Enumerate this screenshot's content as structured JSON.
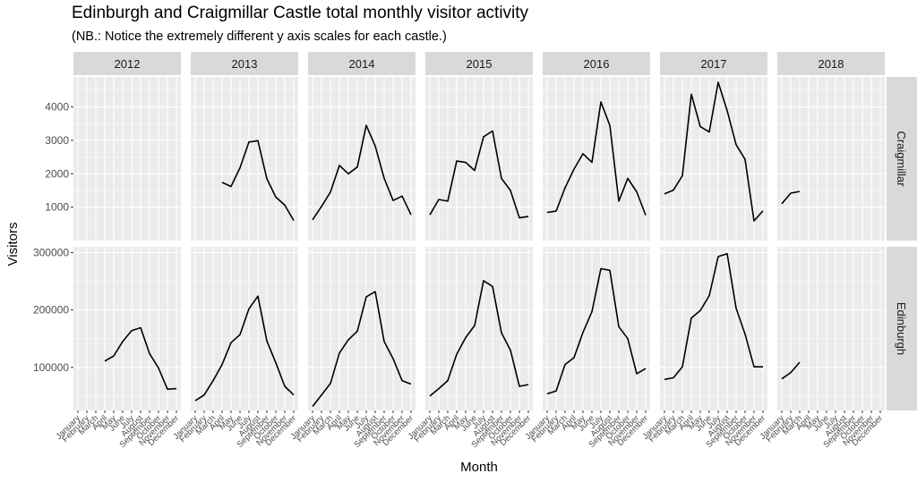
{
  "chart_data": {
    "type": "line",
    "title": "Edinburgh and Craigmillar Castle total monthly visitor activity",
    "subtitle": "(NB.: Notice the extremely different y axis scales for each castle.)",
    "xlabel": "Month",
    "ylabel": "Visitors",
    "months": [
      "January",
      "February",
      "March",
      "April",
      "May",
      "June",
      "July",
      "August",
      "September",
      "October",
      "November",
      "December"
    ],
    "years": [
      "2012",
      "2013",
      "2014",
      "2015",
      "2016",
      "2017",
      "2018"
    ],
    "grid": true,
    "facets": [
      {
        "castle": "Craigmillar",
        "ylim": [
          0,
          4900
        ],
        "yticks": [
          1000,
          2000,
          3000,
          4000
        ],
        "yticklabels": [
          "1000",
          "2000",
          "3000",
          "4000"
        ],
        "series": [
          {
            "year": "2012",
            "values": [
              null,
              null,
              null,
              null,
              null,
              null,
              null,
              null,
              null,
              null,
              null,
              null
            ]
          },
          {
            "year": "2013",
            "values": [
              null,
              null,
              null,
              1740,
              1620,
              2180,
              2950,
              2990,
              1850,
              1300,
              1060,
              600
            ]
          },
          {
            "year": "2014",
            "values": [
              620,
              1020,
              1450,
              2250,
              2000,
              2200,
              3450,
              2830,
              1860,
              1200,
              1330,
              770
            ]
          },
          {
            "year": "2015",
            "values": [
              770,
              1230,
              1180,
              2380,
              2340,
              2100,
              3110,
              3280,
              1860,
              1500,
              680,
              720
            ]
          },
          {
            "year": "2016",
            "values": [
              840,
              880,
              1580,
              2140,
              2600,
              2340,
              4150,
              3450,
              1180,
              1860,
              1460,
              760
            ]
          },
          {
            "year": "2017",
            "values": [
              1400,
              1510,
              1940,
              4380,
              3410,
              3250,
              4740,
              3890,
              2870,
              2430,
              590,
              890
            ]
          },
          {
            "year": "2018",
            "values": [
              1100,
              1420,
              1470,
              null,
              null,
              null,
              null,
              null,
              null,
              null,
              null,
              null
            ]
          }
        ]
      },
      {
        "castle": "Edinburgh",
        "ylim": [
          25000,
          310000
        ],
        "yticks": [
          100000,
          200000,
          300000
        ],
        "yticklabels": [
          "100000",
          "200000",
          "300000"
        ],
        "series": [
          {
            "year": "2012",
            "values": [
              null,
              null,
              null,
              111000,
              120000,
              145000,
              164000,
              169000,
              124000,
              99000,
              62000,
              63000
            ]
          },
          {
            "year": "2013",
            "values": [
              42000,
              52000,
              77000,
              105000,
              143000,
              157000,
              202000,
              224000,
              146000,
              108000,
              67000,
              52000
            ]
          },
          {
            "year": "2014",
            "values": [
              32000,
              52000,
              72000,
              125000,
              148000,
              163000,
              223000,
              232000,
              145000,
              115000,
              77000,
              71000
            ]
          },
          {
            "year": "2015",
            "values": [
              50000,
              63000,
              77000,
              123000,
              152000,
              173000,
              251000,
              241000,
              160000,
              130000,
              67000,
              70000
            ]
          },
          {
            "year": "2016",
            "values": [
              54000,
              59000,
              105000,
              117000,
              161000,
              197000,
              272000,
              269000,
              171000,
              150000,
              89000,
              98000
            ]
          },
          {
            "year": "2017",
            "values": [
              79000,
              82000,
              101000,
              186000,
              199000,
              225000,
              293000,
              298000,
              203000,
              158000,
              101000,
              101000
            ]
          },
          {
            "year": "2018",
            "values": [
              80000,
              91000,
              109000,
              null,
              null,
              null,
              null,
              null,
              null,
              null,
              null,
              null
            ]
          }
        ]
      }
    ]
  }
}
